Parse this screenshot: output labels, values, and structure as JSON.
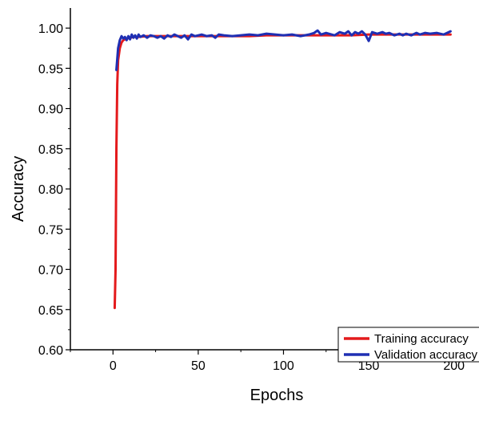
{
  "colors": {
    "training": "#e41a1c",
    "validation": "#1f2fb3",
    "axis": "#000000"
  },
  "chart_data": {
    "type": "line",
    "title": "",
    "xlabel": "Epochs",
    "ylabel": "Accuracy",
    "xlim": [
      -25,
      210
    ],
    "ylim": [
      0.6,
      1.025
    ],
    "xticks": [
      0,
      50,
      100,
      150,
      200
    ],
    "xtick_labels": [
      "0",
      "50",
      "100",
      "150",
      "200"
    ],
    "yticks": [
      0.6,
      0.65,
      0.7,
      0.75,
      0.8,
      0.85,
      0.9,
      0.95,
      1.0
    ],
    "ytick_labels": [
      "0.60",
      "0.65",
      "0.70",
      "0.75",
      "0.80",
      "0.85",
      "0.90",
      "0.95",
      "1.00"
    ],
    "grid": false,
    "legend_position": "bottom-right",
    "series": [
      {
        "name": "Training accuracy",
        "color": "#e41a1c",
        "x": [
          1,
          1.5,
          2,
          2.5,
          3,
          4,
          5,
          6,
          8,
          10,
          12,
          15,
          20,
          25,
          30,
          40,
          50,
          60,
          70,
          80,
          90,
          100,
          110,
          120,
          130,
          140,
          150,
          160,
          170,
          180,
          190,
          198
        ],
        "y": [
          0.652,
          0.7,
          0.85,
          0.93,
          0.96,
          0.975,
          0.982,
          0.985,
          0.987,
          0.988,
          0.989,
          0.989,
          0.99,
          0.99,
          0.99,
          0.99,
          0.99,
          0.99,
          0.99,
          0.99,
          0.991,
          0.991,
          0.991,
          0.991,
          0.991,
          0.991,
          0.992,
          0.992,
          0.992,
          0.992,
          0.992,
          0.992
        ]
      },
      {
        "name": "Validation accuracy",
        "color": "#1f2fb3",
        "x": [
          2,
          3,
          4,
          5,
          6,
          7,
          8,
          9,
          10,
          11,
          12,
          13,
          14,
          15,
          16,
          18,
          20,
          22,
          24,
          26,
          28,
          30,
          32,
          34,
          36,
          38,
          40,
          42,
          44,
          46,
          48,
          50,
          52,
          55,
          58,
          60,
          62,
          65,
          70,
          75,
          80,
          85,
          90,
          95,
          100,
          105,
          110,
          115,
          118,
          120,
          122,
          125,
          130,
          133,
          136,
          138,
          140,
          142,
          144,
          146,
          148,
          150,
          152,
          155,
          158,
          160,
          162,
          165,
          168,
          170,
          172,
          175,
          178,
          180,
          183,
          186,
          190,
          194,
          198
        ],
        "y": [
          0.948,
          0.975,
          0.985,
          0.99,
          0.987,
          0.989,
          0.985,
          0.99,
          0.986,
          0.992,
          0.988,
          0.991,
          0.987,
          0.992,
          0.989,
          0.991,
          0.988,
          0.991,
          0.99,
          0.988,
          0.99,
          0.987,
          0.991,
          0.989,
          0.992,
          0.99,
          0.988,
          0.991,
          0.986,
          0.992,
          0.99,
          0.991,
          0.992,
          0.99,
          0.991,
          0.988,
          0.992,
          0.991,
          0.99,
          0.991,
          0.992,
          0.991,
          0.993,
          0.992,
          0.991,
          0.992,
          0.99,
          0.992,
          0.994,
          0.997,
          0.992,
          0.994,
          0.991,
          0.995,
          0.993,
          0.996,
          0.991,
          0.995,
          0.993,
          0.996,
          0.992,
          0.984,
          0.995,
          0.993,
          0.995,
          0.993,
          0.994,
          0.991,
          0.993,
          0.991,
          0.993,
          0.991,
          0.994,
          0.992,
          0.994,
          0.993,
          0.994,
          0.992,
          0.996
        ]
      }
    ]
  }
}
